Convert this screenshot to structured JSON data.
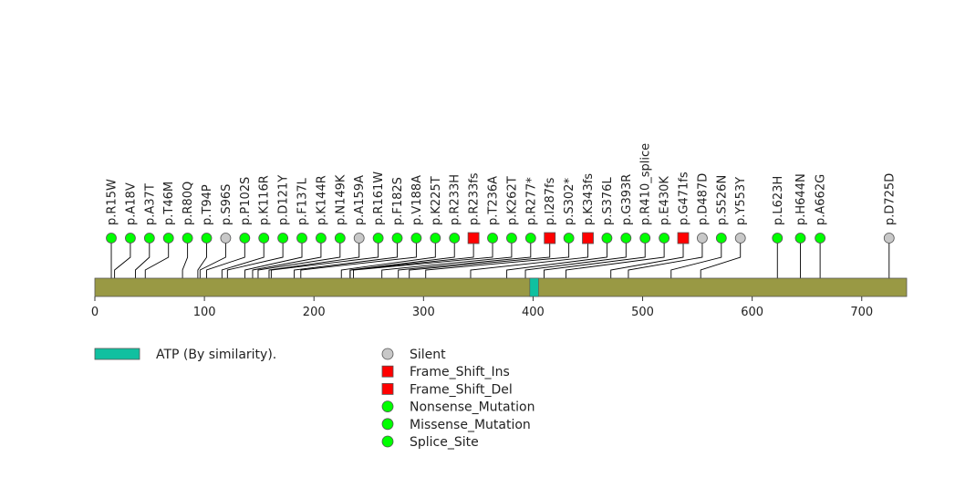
{
  "chart_data": {
    "type": "lollipop",
    "protein_length": 741,
    "axis_ticks": [
      0,
      100,
      200,
      300,
      400,
      500,
      600,
      700
    ],
    "domains": [
      {
        "name": "ATP (By similarity).",
        "start": 397,
        "end": 405,
        "color": "#10c0a0"
      }
    ],
    "colors": {
      "backbone": "#999944",
      "Silent": "#c8c8c8",
      "Frame_Shift_Ins": "#ff0000",
      "Frame_Shift_Del": "#ff0000",
      "Nonsense_Mutation": "#00ff00",
      "Missense_Mutation": "#00ff00",
      "Splice_Site": "#00ff00"
    },
    "mutations": [
      {
        "label": "p.R15W",
        "pos": 15,
        "type": "Missense_Mutation"
      },
      {
        "label": "p.A18V",
        "pos": 18,
        "type": "Missense_Mutation"
      },
      {
        "label": "p.A37T",
        "pos": 37,
        "type": "Missense_Mutation"
      },
      {
        "label": "p.T46M",
        "pos": 46,
        "type": "Missense_Mutation"
      },
      {
        "label": "p.R80Q",
        "pos": 80,
        "type": "Missense_Mutation"
      },
      {
        "label": "p.T94P",
        "pos": 94,
        "type": "Missense_Mutation"
      },
      {
        "label": "p.S96S",
        "pos": 96,
        "type": "Silent"
      },
      {
        "label": "p.P102S",
        "pos": 102,
        "type": "Missense_Mutation"
      },
      {
        "label": "p.K116R",
        "pos": 116,
        "type": "Missense_Mutation"
      },
      {
        "label": "p.D121Y",
        "pos": 121,
        "type": "Missense_Mutation"
      },
      {
        "label": "p.F137L",
        "pos": 137,
        "type": "Missense_Mutation"
      },
      {
        "label": "p.K144R",
        "pos": 144,
        "type": "Missense_Mutation"
      },
      {
        "label": "p.N149K",
        "pos": 149,
        "type": "Missense_Mutation"
      },
      {
        "label": "p.A159A",
        "pos": 159,
        "type": "Silent"
      },
      {
        "label": "p.R161W",
        "pos": 161,
        "type": "Missense_Mutation"
      },
      {
        "label": "p.F182S",
        "pos": 182,
        "type": "Missense_Mutation"
      },
      {
        "label": "p.V188A",
        "pos": 188,
        "type": "Missense_Mutation"
      },
      {
        "label": "p.K225T",
        "pos": 225,
        "type": "Missense_Mutation"
      },
      {
        "label": "p.R233H",
        "pos": 233,
        "type": "Missense_Mutation"
      },
      {
        "label": "p.R233fs",
        "pos": 233,
        "type": "Frame_Shift_Ins"
      },
      {
        "label": "p.T236A",
        "pos": 236,
        "type": "Missense_Mutation"
      },
      {
        "label": "p.K262T",
        "pos": 262,
        "type": "Missense_Mutation"
      },
      {
        "label": "p.R277*",
        "pos": 277,
        "type": "Nonsense_Mutation"
      },
      {
        "label": "p.I287fs",
        "pos": 287,
        "type": "Frame_Shift_Del"
      },
      {
        "label": "p.S302*",
        "pos": 302,
        "type": "Nonsense_Mutation"
      },
      {
        "label": "p.K343fs",
        "pos": 343,
        "type": "Frame_Shift_Del"
      },
      {
        "label": "p.S376L",
        "pos": 376,
        "type": "Missense_Mutation"
      },
      {
        "label": "p.G393R",
        "pos": 393,
        "type": "Missense_Mutation"
      },
      {
        "label": "p.R410_splice",
        "pos": 410,
        "type": "Splice_Site"
      },
      {
        "label": "p.E430K",
        "pos": 430,
        "type": "Missense_Mutation"
      },
      {
        "label": "p.G471fs",
        "pos": 471,
        "type": "Frame_Shift_Del"
      },
      {
        "label": "p.D487D",
        "pos": 487,
        "type": "Silent"
      },
      {
        "label": "p.S526N",
        "pos": 526,
        "type": "Missense_Mutation"
      },
      {
        "label": "p.Y553Y",
        "pos": 553,
        "type": "Silent"
      },
      {
        "label": "p.L623H",
        "pos": 623,
        "type": "Missense_Mutation"
      },
      {
        "label": "p.H644N",
        "pos": 644,
        "type": "Missense_Mutation"
      },
      {
        "label": "p.A662G",
        "pos": 662,
        "type": "Missense_Mutation"
      },
      {
        "label": "p.D725D",
        "pos": 725,
        "type": "Silent"
      }
    ],
    "legend_domains": [
      "ATP (By similarity)."
    ],
    "legend_types": [
      {
        "name": "Silent",
        "shape": "circle"
      },
      {
        "name": "Frame_Shift_Ins",
        "shape": "square"
      },
      {
        "name": "Frame_Shift_Del",
        "shape": "square"
      },
      {
        "name": "Nonsense_Mutation",
        "shape": "circle"
      },
      {
        "name": "Missense_Mutation",
        "shape": "circle"
      },
      {
        "name": "Splice_Site",
        "shape": "circle"
      }
    ]
  }
}
